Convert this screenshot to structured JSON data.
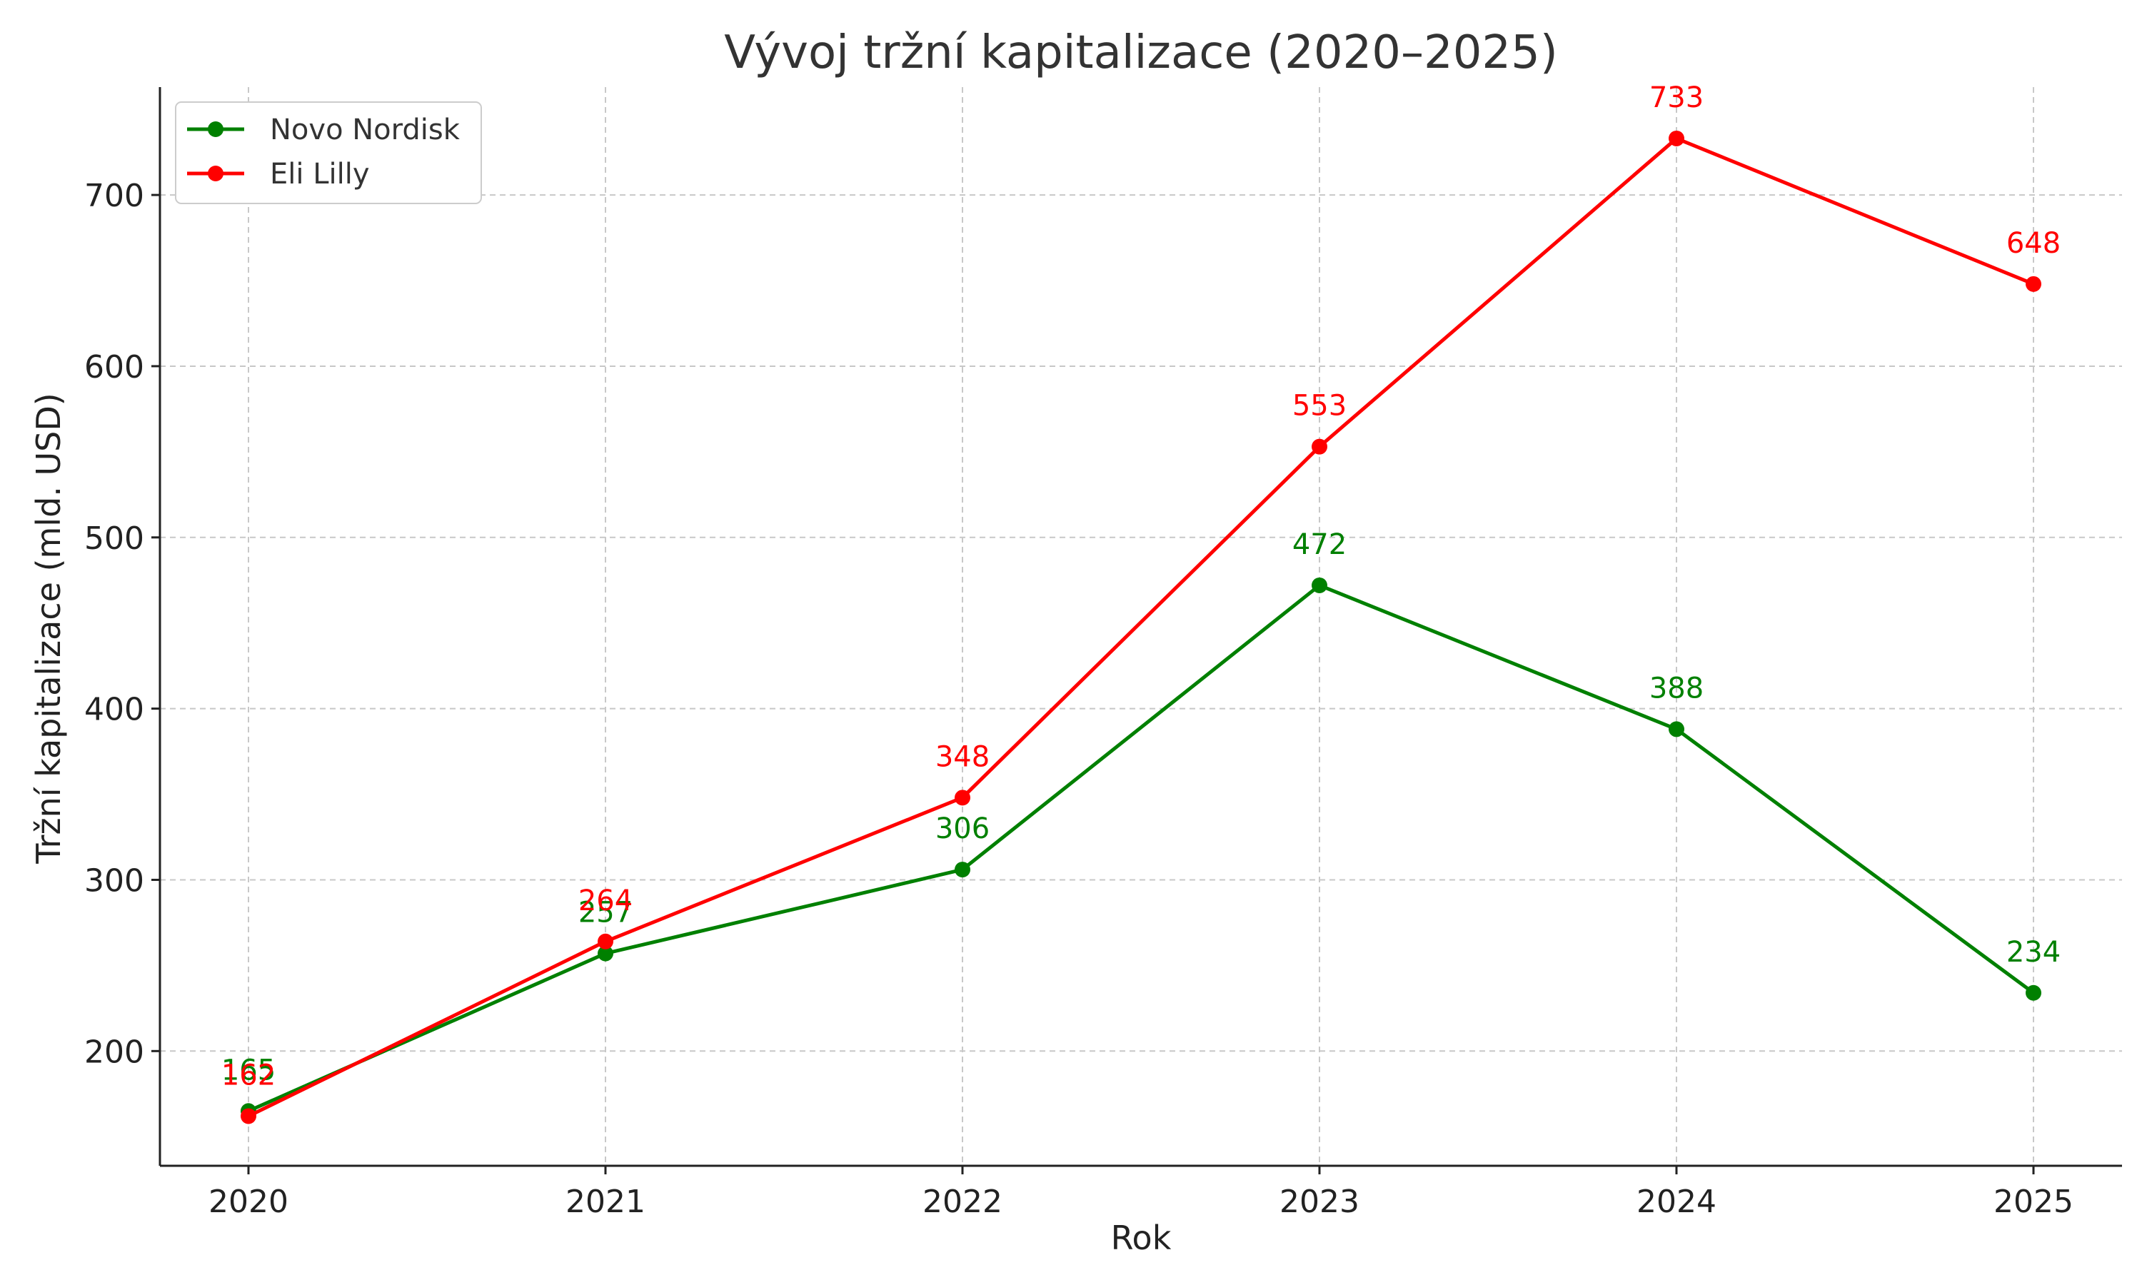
{
  "chart_data": {
    "type": "line",
    "title": "Vývoj tržní kapitalizace (2020–2025)",
    "xlabel": "Rok",
    "ylabel": "Tržní kapitalizace (mld. USD)",
    "x": [
      "2020",
      "2021",
      "2022",
      "2023",
      "2024",
      "2025"
    ],
    "yticks": [
      200,
      300,
      400,
      500,
      600,
      700
    ],
    "ylim": [
      133,
      763
    ],
    "grid": true,
    "legend_position": "top-left",
    "series": [
      {
        "name": "Novo Nordisk",
        "color": "#008000",
        "values": [
          165,
          257,
          306,
          472,
          388,
          234
        ],
        "labels": [
          "165",
          "257",
          "306",
          "472",
          "388",
          "234"
        ]
      },
      {
        "name": "Eli Lilly",
        "color": "#ff0000",
        "values": [
          162,
          264,
          348,
          553,
          733,
          648
        ],
        "labels": [
          "162",
          "264",
          "348",
          "553",
          "733",
          "648"
        ]
      }
    ]
  }
}
